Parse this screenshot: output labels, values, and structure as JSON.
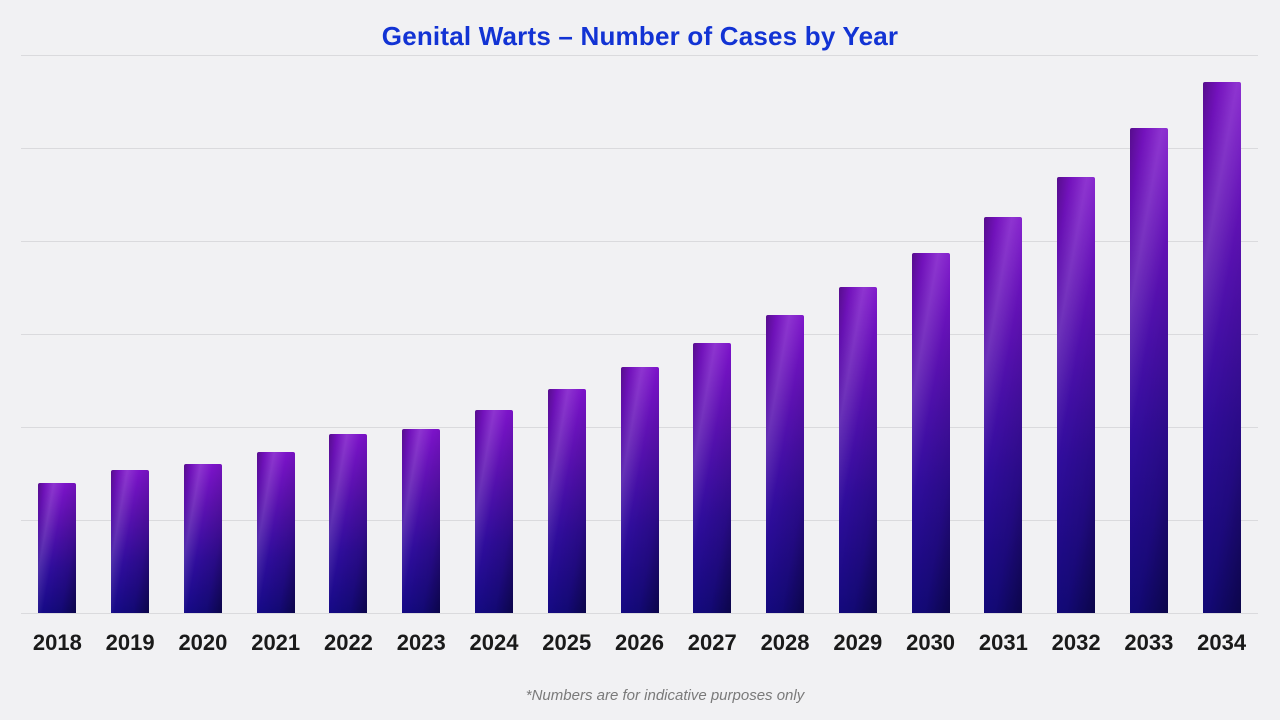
{
  "page": {
    "background_color": "#f1f1f3",
    "title": "Genital Warts – Number of Cases by Year",
    "title_color": "#1233d4",
    "footnote": "*Numbers are for indicative purposes only",
    "footnote_color": "#7a7a7a"
  },
  "chart_data": {
    "type": "bar",
    "title": "Genital Warts – Number of Cases by Year",
    "categories": [
      "2018",
      "2019",
      "2020",
      "2021",
      "2022",
      "2023",
      "2024",
      "2025",
      "2026",
      "2027",
      "2028",
      "2029",
      "2030",
      "2031",
      "2032",
      "2033",
      "2034"
    ],
    "values": [
      1.4,
      1.54,
      1.6,
      1.73,
      1.92,
      1.98,
      2.18,
      2.41,
      2.65,
      2.9,
      3.2,
      3.51,
      3.87,
      4.26,
      4.69,
      5.22,
      5.71
    ],
    "value_note": "y-axis has no tick labels; values estimated in gridline intervals (1 unit = 1 gridline spacing)",
    "ylim": [
      0,
      6
    ],
    "gridline_count": 7,
    "grid": true,
    "legend_position": "none",
    "xlabel": "",
    "ylabel": "",
    "bar_gradient_top": "#7c13c9",
    "bar_gradient_bottom": "#150a86",
    "gridline_color": "#dadadd",
    "annotation": "*Numbers are for indicative purposes only"
  }
}
